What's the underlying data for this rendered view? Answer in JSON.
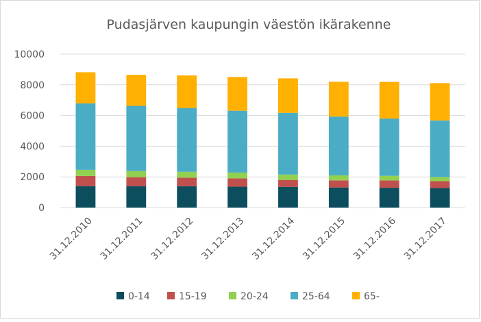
{
  "chart_data": {
    "type": "bar",
    "stacked": true,
    "title": "Pudasjärven kaupungin väestön ikärakenne",
    "xlabel": "",
    "ylabel": "",
    "ylim": [
      0,
      10000
    ],
    "yticks": [
      0,
      2000,
      4000,
      6000,
      8000,
      10000
    ],
    "grid": true,
    "legend_position": "bottom",
    "categories": [
      "31.12.2010",
      "31.12.2011",
      "31.12.2012",
      "31.12.2013",
      "31.12.2014",
      "31.12.2015",
      "31.12.2016",
      "31.12.2017"
    ],
    "series": [
      {
        "name": "0-14",
        "color": "#0c4d5e",
        "values": [
          1400,
          1400,
          1390,
          1360,
          1350,
          1310,
          1290,
          1270
        ]
      },
      {
        "name": "15-19",
        "color": "#c0504d",
        "values": [
          660,
          580,
          560,
          540,
          450,
          460,
          480,
          450
        ]
      },
      {
        "name": "20-24",
        "color": "#92d050",
        "values": [
          400,
          400,
          380,
          380,
          350,
          330,
          300,
          270
        ]
      },
      {
        "name": "25-64",
        "color": "#4bacc6",
        "values": [
          4330,
          4250,
          4160,
          4030,
          4020,
          3830,
          3730,
          3690
        ]
      },
      {
        "name": "65-",
        "color": "#ffb000",
        "values": [
          2030,
          2020,
          2120,
          2200,
          2250,
          2270,
          2390,
          2430
        ]
      }
    ]
  }
}
